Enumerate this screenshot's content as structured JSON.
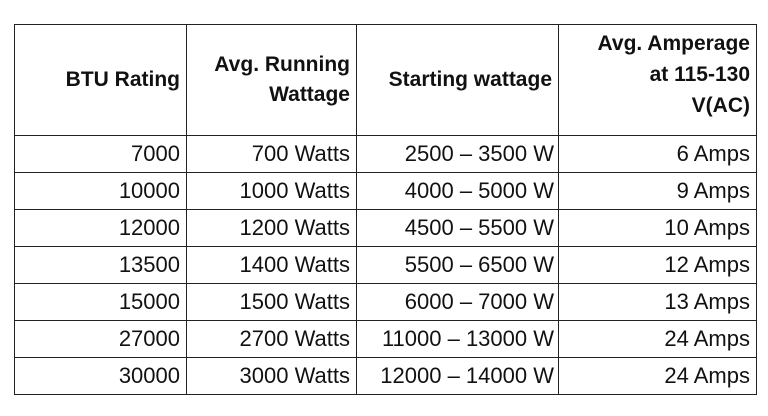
{
  "table": {
    "headers": {
      "btu": "BTU Rating",
      "running": [
        "Avg. Running",
        "Wattage"
      ],
      "starting": "Starting wattage",
      "amperage": [
        "Avg. Amperage",
        "at 115-130",
        "V(AC)"
      ]
    },
    "rows": [
      {
        "btu": "7000",
        "running": "700 Watts",
        "starting": "2500 – 3500 W",
        "amperage": "6 Amps"
      },
      {
        "btu": "10000",
        "running": "1000 Watts",
        "starting": "4000 – 5000 W",
        "amperage": "9 Amps"
      },
      {
        "btu": "12000",
        "running": "1200 Watts",
        "starting": "4500 – 5500 W",
        "amperage": "10 Amps"
      },
      {
        "btu": "13500",
        "running": "1400 Watts",
        "starting": "5500 – 6500 W",
        "amperage": "12 Amps"
      },
      {
        "btu": "15000",
        "running": "1500 Watts",
        "starting": "6000 – 7000 W",
        "amperage": "13 Amps"
      },
      {
        "btu": "27000",
        "running": "2700 Watts",
        "starting": "11000 – 13000 W",
        "amperage": "24 Amps"
      },
      {
        "btu": "30000",
        "running": "3000 Watts",
        "starting": "12000 – 14000 W",
        "amperage": "24 Amps"
      }
    ]
  }
}
